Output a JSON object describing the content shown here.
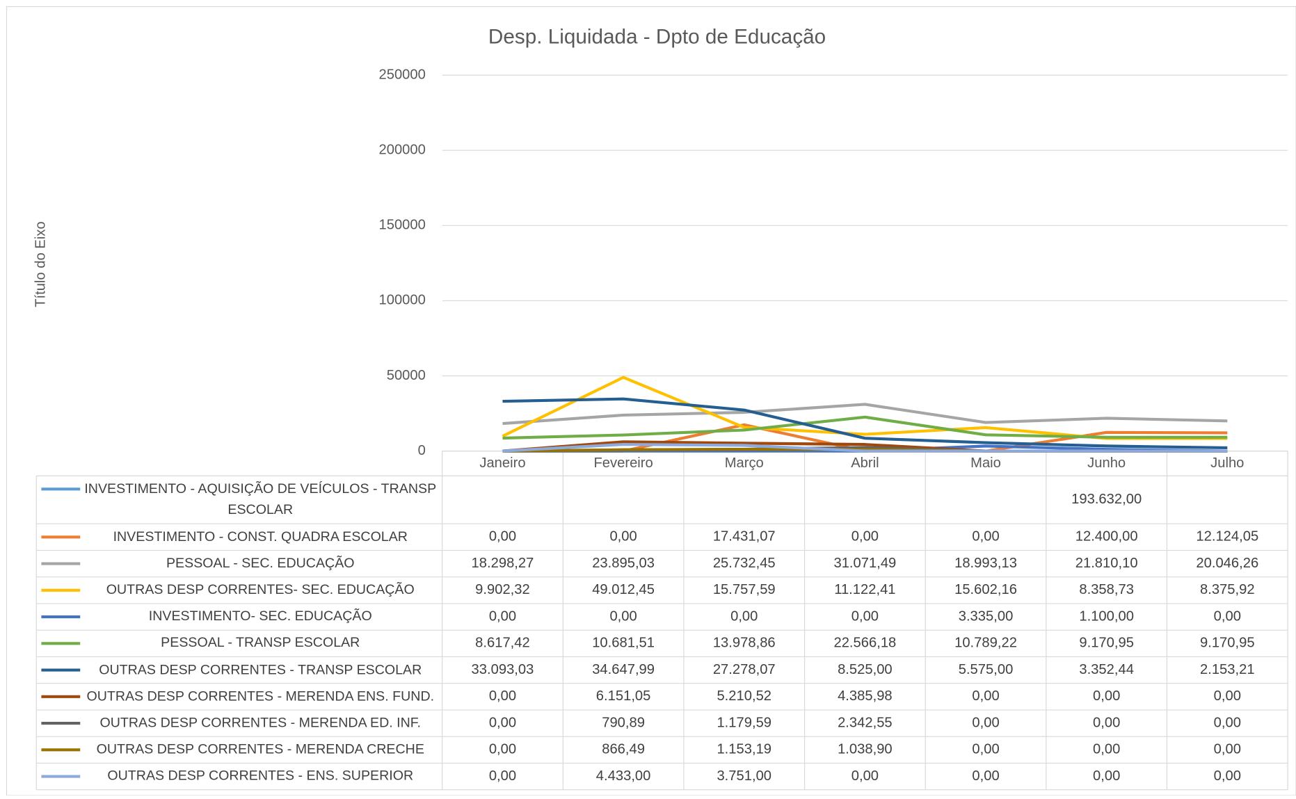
{
  "chart_data": {
    "type": "line",
    "title": "Desp. Liquidada - Dpto de Educação",
    "y_label": "Título do Eixo",
    "categories": [
      "Janeiro",
      "Fevereiro",
      "Março",
      "Abril",
      "Maio",
      "Junho",
      "Julho"
    ],
    "ylim": [
      0,
      250000
    ],
    "yticks": [
      0,
      50000,
      100000,
      150000,
      200000,
      250000
    ],
    "grid": true,
    "series": [
      {
        "name": "INVESTIMENTO - AQUISIÇÃO DE VEÍCULOS - TRANSP ESCOLAR",
        "color": "#5b9bd5",
        "values": [
          null,
          null,
          null,
          null,
          null,
          193632,
          null
        ],
        "value_labels": [
          null,
          null,
          null,
          null,
          null,
          "193.632,00",
          null
        ]
      },
      {
        "name": "INVESTIMENTO - CONST. QUADRA ESCOLAR",
        "color": "#ed7d31",
        "values": [
          0,
          0,
          17431.07,
          0,
          0,
          12400,
          12124.05
        ],
        "value_labels": [
          "0,00",
          "0,00",
          "17.431,07",
          "0,00",
          "0,00",
          "12.400,00",
          "12.124,05"
        ]
      },
      {
        "name": "PESSOAL - SEC. EDUCAÇÃO",
        "color": "#a5a5a5",
        "values": [
          18298.27,
          23895.03,
          25732.45,
          31071.49,
          18993.13,
          21810.1,
          20046.26
        ],
        "value_labels": [
          "18.298,27",
          "23.895,03",
          "25.732,45",
          "31.071,49",
          "18.993,13",
          "21.810,10",
          "20.046,26"
        ]
      },
      {
        "name": "OUTRAS DESP CORRENTES- SEC. EDUCAÇÃO",
        "color": "#ffc000",
        "values": [
          9902.32,
          49012.45,
          15757.59,
          11122.41,
          15602.16,
          8358.73,
          8375.92
        ],
        "value_labels": [
          "9.902,32",
          "49.012,45",
          "15.757,59",
          "11.122,41",
          "15.602,16",
          "8.358,73",
          "8.375,92"
        ]
      },
      {
        "name": "INVESTIMENTO- SEC. EDUCAÇÃO",
        "color": "#4472c4",
        "values": [
          0,
          0,
          0,
          0,
          3335,
          1100,
          0
        ],
        "value_labels": [
          "0,00",
          "0,00",
          "0,00",
          "0,00",
          "3.335,00",
          "1.100,00",
          "0,00"
        ]
      },
      {
        "name": "PESSOAL - TRANSP ESCOLAR",
        "color": "#70ad47",
        "values": [
          8617.42,
          10681.51,
          13978.86,
          22566.18,
          10789.22,
          9170.95,
          9170.95
        ],
        "value_labels": [
          "8.617,42",
          "10.681,51",
          "13.978,86",
          "22.566,18",
          "10.789,22",
          "9.170,95",
          "9.170,95"
        ]
      },
      {
        "name": "OUTRAS DESP CORRENTES - TRANSP ESCOLAR",
        "color": "#255e91",
        "values": [
          33093.03,
          34647.99,
          27278.07,
          8525,
          5575,
          3352.44,
          2153.21
        ],
        "value_labels": [
          "33.093,03",
          "34.647,99",
          "27.278,07",
          "8.525,00",
          "5.575,00",
          "3.352,44",
          "2.153,21"
        ]
      },
      {
        "name": "OUTRAS DESP CORRENTES - MERENDA ENS. FUND.",
        "color": "#9e480e",
        "values": [
          0,
          6151.05,
          5210.52,
          4385.98,
          0,
          0,
          0
        ],
        "value_labels": [
          "0,00",
          "6.151,05",
          "5.210,52",
          "4.385,98",
          "0,00",
          "0,00",
          "0,00"
        ]
      },
      {
        "name": "OUTRAS DESP CORRENTES - MERENDA ED. INF.",
        "color": "#636363",
        "values": [
          0,
          790.89,
          1179.59,
          2342.55,
          0,
          0,
          0
        ],
        "value_labels": [
          "0,00",
          "790,89",
          "1.179,59",
          "2.342,55",
          "0,00",
          "0,00",
          "0,00"
        ]
      },
      {
        "name": "OUTRAS DESP CORRENTES - MERENDA CRECHE",
        "color": "#997300",
        "values": [
          0,
          866.49,
          1153.19,
          1038.9,
          0,
          0,
          0
        ],
        "value_labels": [
          "0,00",
          "866,49",
          "1.153,19",
          "1.038,90",
          "0,00",
          "0,00",
          "0,00"
        ]
      },
      {
        "name": "OUTRAS DESP CORRENTES - ENS. SUPERIOR",
        "color": "#8ea9db",
        "values": [
          0,
          4433,
          3751,
          0,
          0,
          0,
          0
        ],
        "value_labels": [
          "0,00",
          "4.433,00",
          "3.751,00",
          "0,00",
          "0,00",
          "0,00",
          "0,00"
        ]
      }
    ]
  }
}
